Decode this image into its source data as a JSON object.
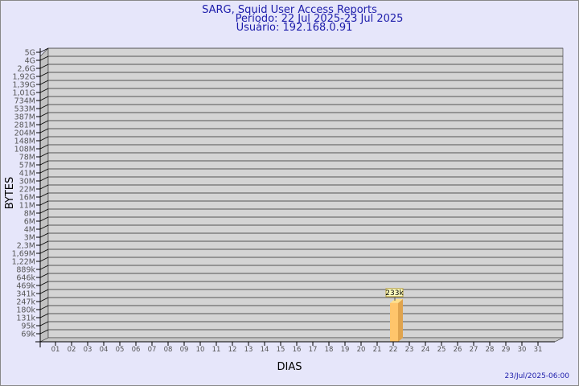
{
  "chart_data": {
    "type": "bar",
    "title": "SARG, Squid User Access Reports",
    "subtitle": "Período: 22 Jul 2025-23 Jul 2025",
    "user_line": "Usuário: 192.168.0.91",
    "xlabel": "DIAS",
    "ylabel": "BYTES",
    "y_scale": "log",
    "y_tick_labels": [
      "5G",
      "4G",
      "2,6G",
      "1,92G",
      "1,39G",
      "1,01G",
      "734M",
      "533M",
      "387M",
      "281M",
      "204M",
      "148M",
      "108M",
      "78M",
      "57M",
      "41M",
      "30M",
      "22M",
      "16M",
      "11M",
      "8M",
      "6M",
      "4M",
      "3M",
      "2,3M",
      "1,69M",
      "1,22M",
      "889k",
      "646k",
      "469k",
      "341k",
      "247k",
      "180k",
      "131k",
      "95k",
      "69k"
    ],
    "categories": [
      "01",
      "02",
      "03",
      "04",
      "05",
      "06",
      "07",
      "08",
      "09",
      "10",
      "11",
      "12",
      "13",
      "14",
      "15",
      "16",
      "17",
      "18",
      "19",
      "20",
      "21",
      "22",
      "23",
      "24",
      "25",
      "26",
      "27",
      "28",
      "29",
      "30",
      "31"
    ],
    "bars": [
      {
        "category": "22",
        "value": 233000,
        "label": "233k"
      }
    ],
    "grid": true,
    "bar_color": "#ffc56b"
  },
  "footer": "23/Jul/2025-06:00"
}
